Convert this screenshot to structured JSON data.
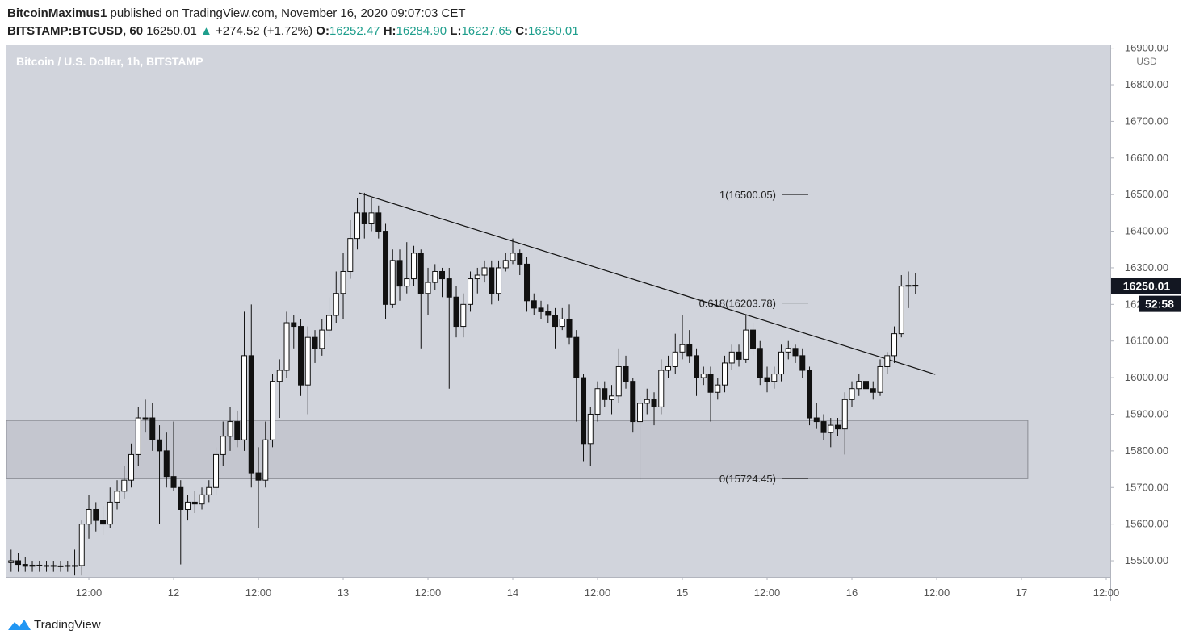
{
  "header": {
    "author": "BitcoinMaximus1",
    "published": "published on TradingView.com, November 16, 2020 09:07:03 CET",
    "symbol": "BITSTAMP:BTCUSD, 60",
    "last": "16250.01",
    "change": "+274.52 (+1.72%)",
    "o_key": "O:",
    "o": "16252.47",
    "h_key": "H:",
    "h": "16284.90",
    "l_key": "L:",
    "l": "16227.65",
    "c_key": "C:",
    "c": "16250.01"
  },
  "footer": {
    "brand": "TradingView"
  },
  "chart_data": {
    "type": "candlestick",
    "title": "Bitcoin / U.S. Dollar, 1h, BITSTAMP",
    "currency": "USD",
    "countdown": "52:58",
    "xlim": [
      0.34,
      156.57
    ],
    "ylim": [
      15456,
      16908
    ],
    "xticks": [
      {
        "value": 12,
        "label": "12:00"
      },
      {
        "value": 24,
        "label": "12"
      },
      {
        "value": 36,
        "label": "12:00"
      },
      {
        "value": 48,
        "label": "13"
      },
      {
        "value": 60,
        "label": "12:00"
      },
      {
        "value": 72,
        "label": "14"
      },
      {
        "value": 84,
        "label": "12:00"
      },
      {
        "value": 96,
        "label": "15"
      },
      {
        "value": 108,
        "label": "12:00"
      },
      {
        "value": 120,
        "label": "16"
      },
      {
        "value": 132,
        "label": "12:00"
      },
      {
        "value": 144,
        "label": "17"
      },
      {
        "value": 156,
        "label": "12:00"
      }
    ],
    "yticks": [
      {
        "value": 15500,
        "label": "15500.00"
      },
      {
        "value": 15600,
        "label": "15600.00"
      },
      {
        "value": 15700,
        "label": "15700.00"
      },
      {
        "value": 15800,
        "label": "15800.00"
      },
      {
        "value": 15900,
        "label": "15900.00"
      },
      {
        "value": 16000,
        "label": "16000.00"
      },
      {
        "value": 16100,
        "label": "16100.00"
      },
      {
        "value": 16200,
        "label": "16200.00"
      },
      {
        "value": 16300,
        "label": "16300.00"
      },
      {
        "value": 16400,
        "label": "16400.00"
      },
      {
        "value": 16500,
        "label": "16500.00"
      },
      {
        "value": 16600,
        "label": "16600.00"
      },
      {
        "value": 16700,
        "label": "16700.00"
      },
      {
        "value": 16800,
        "label": "16800.00"
      },
      {
        "value": 16900,
        "label": "16900.00"
      }
    ],
    "fib": [
      {
        "label": "1(16500.05)",
        "value": 16500.05
      },
      {
        "label": "0.618(16203.78)",
        "value": 16203.78
      },
      {
        "label": "0(15724.45)",
        "value": 15724.45
      }
    ],
    "trendline": {
      "x": [
        50.2,
        131.8
      ],
      "y": [
        16505,
        16009
      ]
    },
    "zone": {
      "xlim": [
        0.34,
        144.9
      ],
      "ylim": [
        15724,
        15883
      ]
    },
    "x": [
      1,
      2,
      3,
      4,
      5,
      6,
      7,
      8,
      9,
      10,
      11,
      12,
      13,
      14,
      15,
      16,
      17,
      18,
      19,
      20,
      21,
      22,
      23,
      24,
      25,
      26,
      27,
      28,
      29,
      30,
      31,
      32,
      33,
      34,
      35,
      36,
      37,
      38,
      39,
      40,
      41,
      42,
      43,
      44,
      45,
      46,
      47,
      48,
      49,
      50,
      51,
      52,
      53,
      54,
      55,
      56,
      57,
      58,
      59,
      60,
      61,
      62,
      63,
      64,
      65,
      66,
      67,
      68,
      69,
      70,
      71,
      72,
      73,
      74,
      75,
      76,
      77,
      78,
      79,
      80,
      81,
      82,
      83,
      84,
      85,
      86,
      87,
      88,
      89,
      90,
      91,
      92,
      93,
      94,
      95,
      96,
      97,
      98,
      99,
      100,
      101,
      102,
      103,
      104,
      105,
      106,
      107,
      108,
      109,
      110,
      111,
      112,
      113,
      114,
      115,
      116,
      117,
      118,
      119,
      120,
      121,
      122,
      123,
      124,
      125,
      126,
      127,
      128,
      129
    ],
    "candles": [
      [
        15495,
        15530,
        15470,
        15500
      ],
      [
        15500,
        15520,
        15470,
        15490
      ],
      [
        15490,
        15510,
        15470,
        15485
      ],
      [
        15485,
        15500,
        15470,
        15488
      ],
      [
        15488,
        15500,
        15470,
        15486
      ],
      [
        15486,
        15500,
        15470,
        15487
      ],
      [
        15487,
        15500,
        15470,
        15486
      ],
      [
        15486,
        15500,
        15470,
        15486
      ],
      [
        15486,
        15500,
        15470,
        15487
      ],
      [
        15487,
        15530,
        15460,
        15487
      ],
      [
        15487,
        15610,
        15460,
        15600
      ],
      [
        15600,
        15680,
        15560,
        15640
      ],
      [
        15640,
        15660,
        15580,
        15610
      ],
      [
        15610,
        15650,
        15570,
        15600
      ],
      [
        15600,
        15700,
        15590,
        15660
      ],
      [
        15660,
        15720,
        15640,
        15690
      ],
      [
        15690,
        15760,
        15670,
        15720
      ],
      [
        15720,
        15820,
        15700,
        15790
      ],
      [
        15790,
        15920,
        15760,
        15890
      ],
      [
        15890,
        15940,
        15850,
        15890
      ],
      [
        15890,
        15930,
        15800,
        15830
      ],
      [
        15830,
        15870,
        15600,
        15800
      ],
      [
        15800,
        15850,
        15700,
        15730
      ],
      [
        15730,
        15880,
        15690,
        15700
      ],
      [
        15700,
        15720,
        15490,
        15640
      ],
      [
        15640,
        15680,
        15610,
        15660
      ],
      [
        15660,
        15690,
        15630,
        15655
      ],
      [
        15655,
        15700,
        15640,
        15680
      ],
      [
        15680,
        15720,
        15660,
        15700
      ],
      [
        15700,
        15810,
        15680,
        15790
      ],
      [
        15790,
        15880,
        15760,
        15840
      ],
      [
        15840,
        15920,
        15800,
        15880
      ],
      [
        15880,
        15910,
        15810,
        15830
      ],
      [
        15830,
        16180,
        15800,
        16060
      ],
      [
        16060,
        16200,
        15700,
        15740
      ],
      [
        15740,
        15810,
        15590,
        15720
      ],
      [
        15720,
        15880,
        15700,
        15830
      ],
      [
        15830,
        16010,
        15810,
        15990
      ],
      [
        15990,
        16050,
        15890,
        16020
      ],
      [
        16020,
        16180,
        16000,
        16150
      ],
      [
        16150,
        16170,
        16080,
        16140
      ],
      [
        16140,
        16160,
        15950,
        15980
      ],
      [
        15980,
        16140,
        15900,
        16110
      ],
      [
        16110,
        16130,
        16040,
        16080
      ],
      [
        16080,
        16160,
        16060,
        16130
      ],
      [
        16130,
        16220,
        16110,
        16170
      ],
      [
        16170,
        16290,
        16150,
        16230
      ],
      [
        16230,
        16340,
        16160,
        16290
      ],
      [
        16290,
        16430,
        16270,
        16380
      ],
      [
        16380,
        16490,
        16350,
        16450
      ],
      [
        16450,
        16505,
        16380,
        16420
      ],
      [
        16420,
        16490,
        16400,
        16450
      ],
      [
        16450,
        16470,
        16380,
        16400
      ],
      [
        16400,
        16420,
        16160,
        16200
      ],
      [
        16200,
        16350,
        16190,
        16320
      ],
      [
        16320,
        16350,
        16210,
        16250
      ],
      [
        16250,
        16370,
        16230,
        16270
      ],
      [
        16270,
        16360,
        16250,
        16340
      ],
      [
        16340,
        16350,
        16080,
        16230
      ],
      [
        16230,
        16300,
        16170,
        16260
      ],
      [
        16260,
        16310,
        16240,
        16290
      ],
      [
        16290,
        16300,
        16220,
        16270
      ],
      [
        16270,
        16300,
        15970,
        16220
      ],
      [
        16220,
        16250,
        16110,
        16140
      ],
      [
        16140,
        16230,
        16110,
        16200
      ],
      [
        16200,
        16290,
        16180,
        16270
      ],
      [
        16270,
        16300,
        16230,
        16280
      ],
      [
        16280,
        16320,
        16260,
        16300
      ],
      [
        16300,
        16320,
        16200,
        16230
      ],
      [
        16230,
        16320,
        16210,
        16300
      ],
      [
        16300,
        16340,
        16290,
        16320
      ],
      [
        16320,
        16380,
        16310,
        16340
      ],
      [
        16340,
        16350,
        16280,
        16310
      ],
      [
        16310,
        16330,
        16180,
        16210
      ],
      [
        16210,
        16230,
        16170,
        16190
      ],
      [
        16190,
        16210,
        16160,
        16180
      ],
      [
        16180,
        16200,
        16150,
        16170
      ],
      [
        16170,
        16190,
        16080,
        16140
      ],
      [
        16140,
        16190,
        16130,
        16160
      ],
      [
        16160,
        16200,
        16090,
        16110
      ],
      [
        16110,
        16130,
        15880,
        16000
      ],
      [
        16000,
        16010,
        15770,
        15820
      ],
      [
        15820,
        15920,
        15760,
        15900
      ],
      [
        15900,
        15990,
        15880,
        15970
      ],
      [
        15970,
        15990,
        15920,
        15940
      ],
      [
        15940,
        15980,
        15900,
        15950
      ],
      [
        15950,
        16080,
        15930,
        16030
      ],
      [
        16030,
        16060,
        15970,
        15990
      ],
      [
        15990,
        16000,
        15850,
        15880
      ],
      [
        15880,
        15950,
        15720,
        15930
      ],
      [
        15930,
        15970,
        15900,
        15940
      ],
      [
        15940,
        15960,
        15870,
        15920
      ],
      [
        15920,
        16050,
        15900,
        16020
      ],
      [
        16020,
        16060,
        16000,
        16030
      ],
      [
        16030,
        16120,
        16010,
        16070
      ],
      [
        16070,
        16170,
        16050,
        16090
      ],
      [
        16090,
        16130,
        16040,
        16060
      ],
      [
        16060,
        16080,
        15950,
        16000
      ],
      [
        16000,
        16030,
        15980,
        16010
      ],
      [
        16010,
        16030,
        15880,
        15960
      ],
      [
        15960,
        16000,
        15940,
        15980
      ],
      [
        15980,
        16060,
        15960,
        16040
      ],
      [
        16040,
        16090,
        16020,
        16070
      ],
      [
        16070,
        16090,
        16030,
        16050
      ],
      [
        16050,
        16170,
        16040,
        16130
      ],
      [
        16130,
        16150,
        16060,
        16080
      ],
      [
        16080,
        16100,
        15980,
        16000
      ],
      [
        16000,
        16030,
        15960,
        15990
      ],
      [
        15990,
        16030,
        15970,
        16010
      ],
      [
        16010,
        16090,
        15990,
        16070
      ],
      [
        16070,
        16100,
        16050,
        16080
      ],
      [
        16080,
        16090,
        16040,
        16060
      ],
      [
        16060,
        16080,
        16000,
        16020
      ],
      [
        16020,
        16030,
        15870,
        15890
      ],
      [
        15890,
        15930,
        15860,
        15880
      ],
      [
        15880,
        15900,
        15830,
        15850
      ],
      [
        15850,
        15890,
        15810,
        15870
      ],
      [
        15870,
        15890,
        15840,
        15860
      ],
      [
        15860,
        15960,
        15790,
        15940
      ],
      [
        15940,
        15990,
        15920,
        15970
      ],
      [
        15970,
        16010,
        15950,
        15990
      ],
      [
        15990,
        16000,
        15950,
        15970
      ],
      [
        15970,
        15990,
        15940,
        15960
      ],
      [
        15960,
        16050,
        15950,
        16030
      ],
      [
        16030,
        16070,
        16010,
        16060
      ],
      [
        16060,
        16140,
        16040,
        16120
      ],
      [
        16120,
        16280,
        16110,
        16250
      ],
      [
        16250,
        16290,
        16190,
        16252
      ],
      [
        16252.47,
        16284.9,
        16227.65,
        16250.01
      ]
    ]
  }
}
